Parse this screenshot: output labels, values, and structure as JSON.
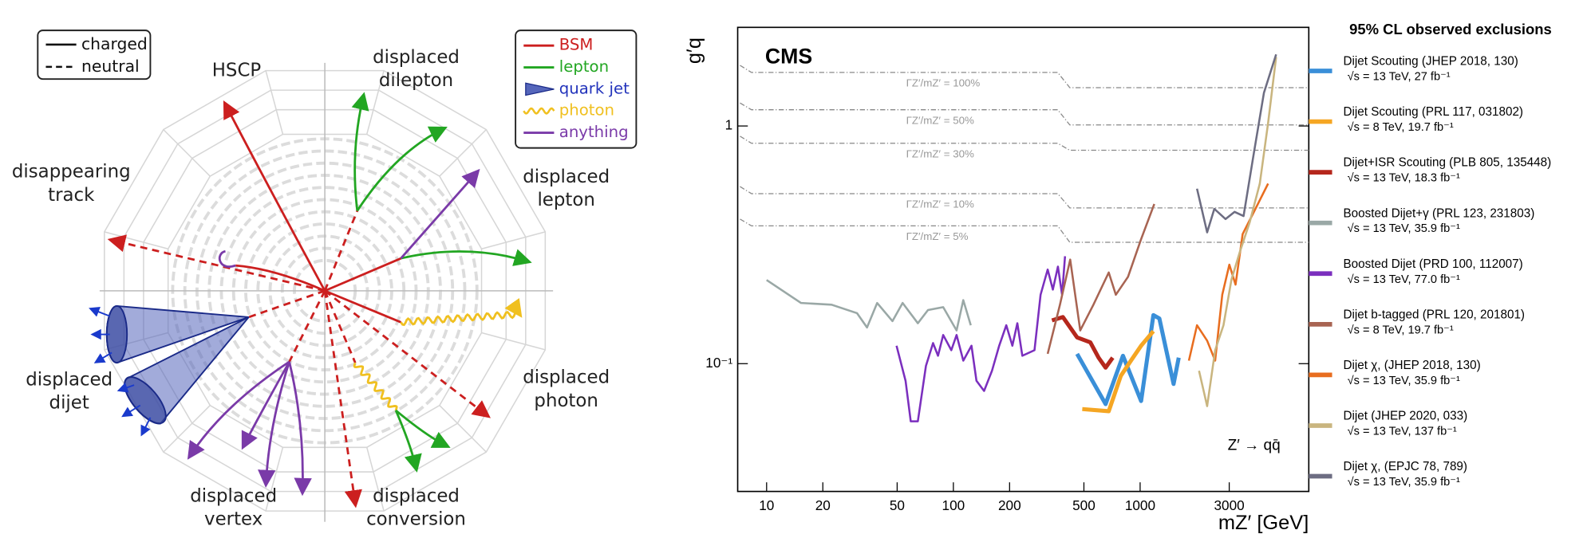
{
  "diagram": {
    "line_legend": [
      "charged",
      "neutral"
    ],
    "particle_legend": [
      {
        "label": "BSM",
        "color": "#cc1f1f"
      },
      {
        "label": "lepton",
        "color": "#22a622"
      },
      {
        "label": "quark jet",
        "color": "#2233bb"
      },
      {
        "label": "photon",
        "color": "#f0c020"
      },
      {
        "label": "anything",
        "color": "#7a3aa8"
      }
    ],
    "labels": [
      [
        "HSCP"
      ],
      [
        "displaced",
        "dilepton"
      ],
      [
        "displaced",
        "lepton"
      ],
      [
        "disappearing",
        "track"
      ],
      [
        "displaced",
        "dijet"
      ],
      [
        "displaced",
        "photon"
      ],
      [
        "displaced",
        "vertex"
      ],
      [
        "displaced",
        "conversion"
      ]
    ]
  },
  "chart_data": {
    "type": "line",
    "xscale": "log",
    "yscale": "log",
    "x_label": "mZ′ [GeV]",
    "y_label": "g′q",
    "xlim": [
      7,
      8000
    ],
    "ylim": [
      0.029,
      2.6
    ],
    "xticks": [
      10,
      20,
      50,
      100,
      200,
      500,
      1000,
      3000
    ],
    "yticks": [
      {
        "value": 0.1,
        "label": "10⁻¹"
      },
      1
    ],
    "annotations": [
      "CMS",
      "Z′ → qq̄"
    ],
    "legend_title": "95% CL observed exclusions",
    "contours": [
      {
        "label": "ΓZ′/mZ′ = 100%",
        "x": [
          7.2,
          8.3,
          362,
          420,
          8000
        ],
        "values": [
          1.8,
          1.68,
          1.68,
          1.45,
          1.45
        ]
      },
      {
        "label": "ΓZ′/mZ′ = 50%",
        "x": [
          7.2,
          8.3,
          362,
          420,
          8000
        ],
        "values": [
          1.25,
          1.17,
          1.17,
          1.01,
          1.01
        ]
      },
      {
        "label": "ΓZ′/mZ′ = 30%",
        "x": [
          7.2,
          8.3,
          362,
          420,
          8000
        ],
        "values": [
          0.906,
          0.846,
          0.846,
          0.79,
          0.79
        ]
      },
      {
        "label": "ΓZ′/mZ′ = 10%",
        "x": [
          7.2,
          8.3,
          362,
          420,
          8000
        ],
        "values": [
          0.556,
          0.519,
          0.519,
          0.452,
          0.452
        ]
      },
      {
        "label": "ΓZ′/mZ′ = 5%",
        "x": [
          7.2,
          8.3,
          362,
          420,
          8000
        ],
        "values": [
          0.406,
          0.38,
          0.38,
          0.324,
          0.324
        ]
      }
    ],
    "series": [
      {
        "name": "Dijet Scouting (JHEP 2018, 130)",
        "detail": "√s = 13 TeV, 27 fb⁻¹",
        "color": "#3a8fd8",
        "linewidth": 4,
        "x": [
          460,
          653,
          809,
          1012,
          1177,
          1268,
          1511,
          1610
        ],
        "values": [
          0.11,
          0.0676,
          0.108,
          0.0696,
          0.16,
          0.155,
          0.0822,
          0.106
        ]
      },
      {
        "name": "Dijet Scouting (PRL 117, 031802)",
        "detail": "√s = 8 TeV, 19.7 fb⁻¹",
        "color": "#f5a623",
        "linewidth": 4,
        "x": [
          490,
          679,
          788,
          893,
          1012,
          1177
        ],
        "values": [
          0.0644,
          0.0631,
          0.0889,
          0.103,
          0.119,
          0.137
        ]
      },
      {
        "name": "Dijet+ISR Scouting (PLB 805, 135448)",
        "detail": "√s = 13 TeV, 18.3 fb⁻¹",
        "color": "#b5271c",
        "linewidth": 4,
        "x": [
          337,
          386,
          460,
          541,
          599,
          653,
          713
        ],
        "values": [
          0.152,
          0.157,
          0.129,
          0.123,
          0.106,
          0.0962,
          0.106
        ]
      },
      {
        "name": "Boosted Dijet+γ (PRL 123, 231803)",
        "detail": "√s = 13 TeV, 35.9 fb⁻¹",
        "color": "#9aa8a6",
        "linewidth": 2,
        "x": [
          10,
          15.3,
          22.3,
          30.5,
          34.5,
          39.1,
          47.2,
          53.5,
          64.5,
          73.1,
          88.2,
          104,
          113,
          124
        ],
        "values": [
          0.225,
          0.18,
          0.177,
          0.163,
          0.142,
          0.18,
          0.151,
          0.18,
          0.148,
          0.168,
          0.173,
          0.138,
          0.185,
          0.145
        ]
      },
      {
        "name": "Boosted Dijet (PRD 100, 112007)",
        "detail": "√s = 13 TeV, 77.0 fb⁻¹",
        "color": "#7b2fbe",
        "linewidth": 2,
        "x": [
          49.6,
          55.5,
          59.1,
          64.5,
          71.3,
          77.8,
          82.8,
          88.2,
          97.5,
          104,
          113,
          125,
          133,
          146,
          161,
          176,
          192,
          207,
          220,
          234,
          272,
          293,
          320,
          341,
          363,
          382,
          396
        ],
        "values": [
          0.119,
          0.0847,
          0.0572,
          0.0572,
          0.098,
          0.122,
          0.108,
          0.132,
          0.114,
          0.132,
          0.103,
          0.119,
          0.0847,
          0.0768,
          0.0934,
          0.119,
          0.145,
          0.119,
          0.148,
          0.108,
          0.114,
          0.195,
          0.249,
          0.205,
          0.256,
          0.195,
          0.283
        ]
      },
      {
        "name": "Dijet b-tagged (PRL 120, 201801)",
        "detail": "√s = 8 TeV, 19.7 fb⁻¹",
        "color": "#a86452",
        "linewidth": 2,
        "x": [
          320,
          372,
          422,
          478,
          562,
          679,
          741,
          861,
          1012,
          1191
        ],
        "values": [
          0.11,
          0.177,
          0.274,
          0.138,
          0.177,
          0.242,
          0.195,
          0.232,
          0.334,
          0.47
        ]
      },
      {
        "name": "Dijet χ, (JHEP 2018, 130)",
        "detail": "√s = 13 TeV, 35.9 fb⁻¹",
        "color": "#e86d1f",
        "linewidth": 2,
        "x": [
          1824,
          2015,
          2285,
          2523,
          2754,
          3006,
          3243,
          3540,
          4009,
          4842
        ],
        "values": [
          0.103,
          0.145,
          0.125,
          0.103,
          0.195,
          0.261,
          0.215,
          0.351,
          0.426,
          0.572
        ]
      },
      {
        "name": "Dijet (JHEP 2020, 033)",
        "detail": "√s = 13 TeV, 137 fb⁻¹",
        "color": "#c9b57f",
        "linewidth": 2,
        "x": [
          2066,
          2285,
          2523,
          2793,
          3083,
          3413,
          3864,
          4375,
          4842,
          5346
        ],
        "values": [
          0.0934,
          0.0663,
          0.114,
          0.145,
          0.226,
          0.294,
          0.394,
          0.572,
          1.03,
          1.95
        ]
      },
      {
        "name": "Dijet χ, (EPJC 78, 789)",
        "detail": "√s = 13 TeV, 35.9 fb⁻¹",
        "color": "#6d6d82",
        "linewidth": 2,
        "x": [
          2015,
          2285,
          2497,
          2866,
          3201,
          3581,
          4064,
          4603,
          5346
        ],
        "values": [
          0.545,
          0.357,
          0.448,
          0.406,
          0.435,
          0.418,
          0.767,
          1.38,
          2.0
        ]
      }
    ]
  }
}
